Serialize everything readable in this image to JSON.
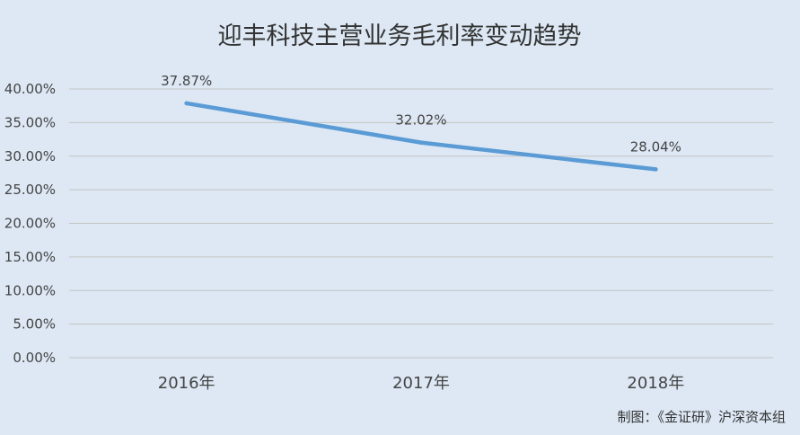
{
  "chart_data": {
    "type": "line",
    "title": "迎丰科技主营业务毛利率变动趋势",
    "categories": [
      "2016年",
      "2017年",
      "2018年"
    ],
    "series": [
      {
        "values": [
          37.87,
          32.02,
          28.04
        ],
        "data_labels": [
          "37.87%",
          "32.02%",
          "28.04%"
        ],
        "color": "#5b9bd5"
      }
    ],
    "y_ticks": [
      "0.00%",
      "5.00%",
      "10.00%",
      "15.00%",
      "20.00%",
      "25.00%",
      "30.00%",
      "35.00%",
      "40.00%"
    ],
    "ylim": [
      0,
      40
    ],
    "grid": true,
    "xlabel": "",
    "ylabel": ""
  },
  "source": "制图：《金证研》沪深资本组",
  "colors": {
    "background": "#dde8f4",
    "line": "#5b9bd5",
    "grid": "#c4c4c4",
    "text": "#444444"
  }
}
